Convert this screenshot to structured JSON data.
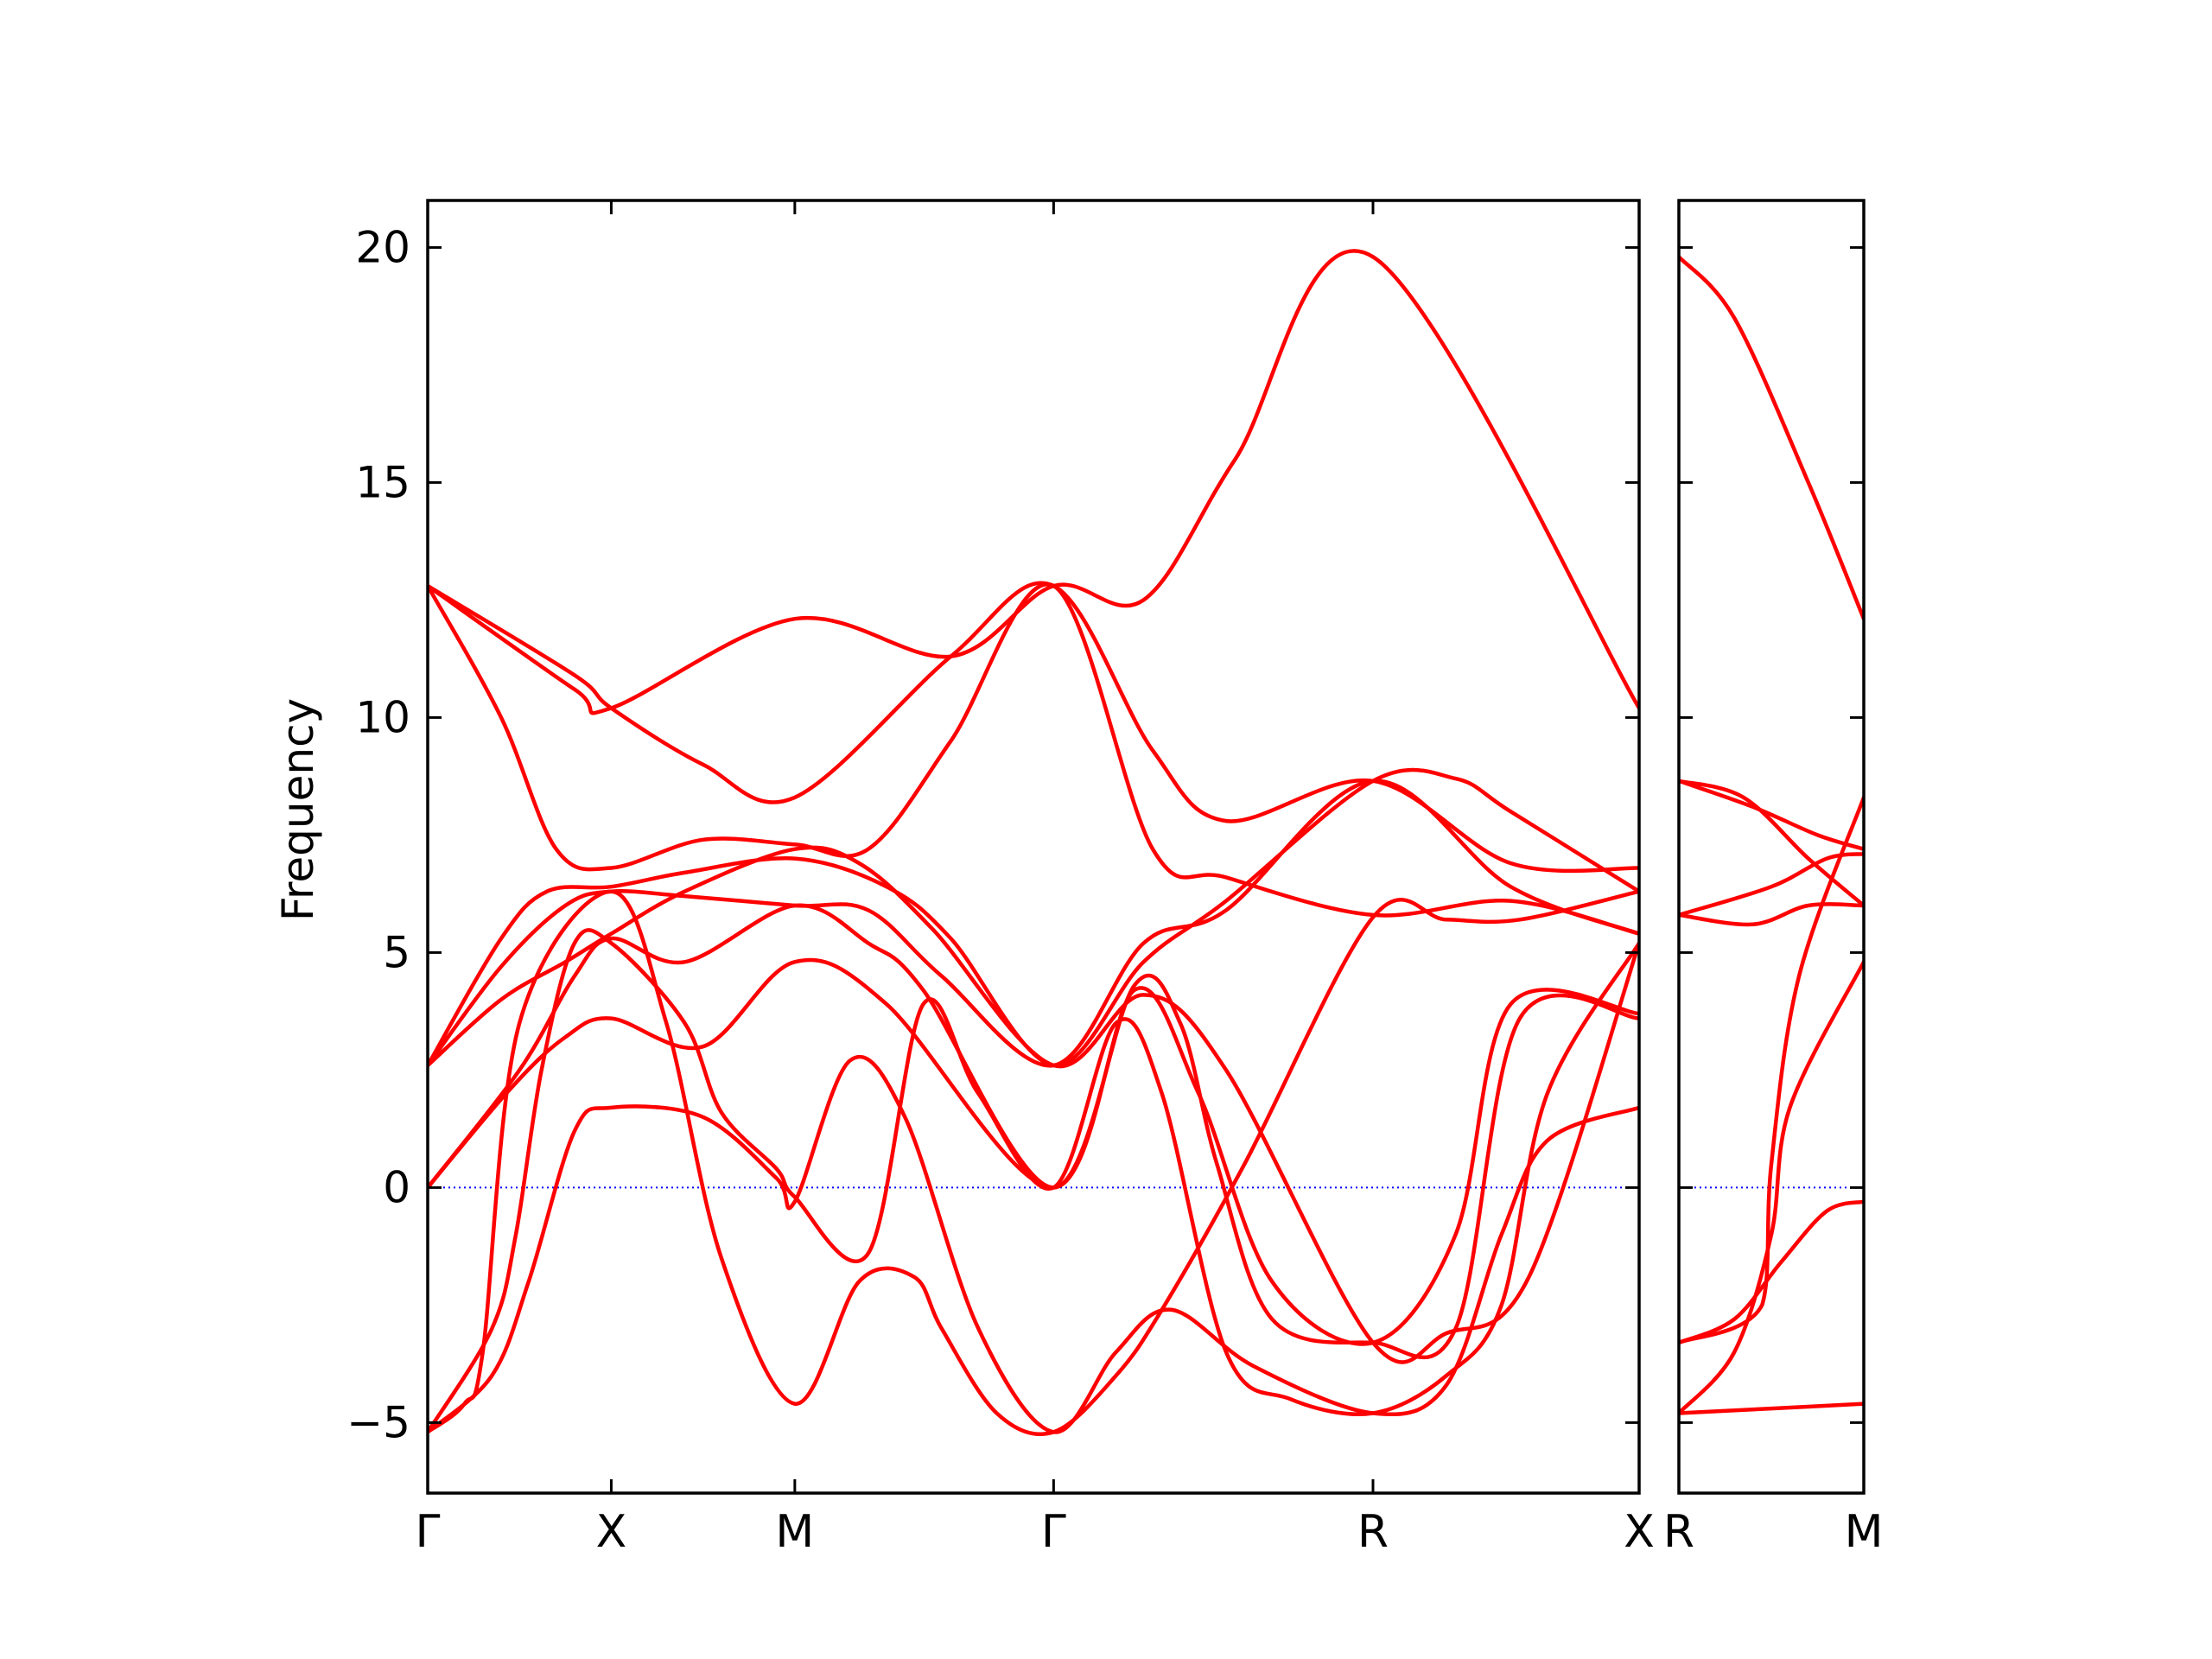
{
  "chart_data": {
    "type": "line",
    "ylabel": "Frequency",
    "ylim": [
      -6.5,
      21
    ],
    "yticks": [
      -5,
      0,
      5,
      10,
      15,
      20
    ],
    "ytick_labels": [
      "−5",
      "0",
      "5",
      "10",
      "15",
      "20"
    ],
    "grid": false,
    "zero_line": {
      "value": 0,
      "color": "#0000ff",
      "style": "dotted"
    },
    "line_color": "#ff0000",
    "panels": [
      {
        "x_range": [
          0,
          6.6
        ],
        "xticks": [
          {
            "x": 0,
            "label": "Γ"
          },
          {
            "x": 1.0,
            "label": "X"
          },
          {
            "x": 2.0,
            "label": "M"
          },
          {
            "x": 3.41,
            "label": "Γ"
          },
          {
            "x": 5.15,
            "label": "R"
          },
          {
            "x": 6.6,
            "label": "X"
          }
        ],
        "bands": [
          {
            "x": [
              0,
              0.8,
              1.0,
              2.0,
              2.85,
              3.41,
              3.9,
              4.4,
              5.15,
              6.6
            ],
            "y": [
              12.8,
              10.6,
              10.2,
              12.1,
              11.3,
              12.8,
              12.5,
              15.5,
              19.8,
              10.2
            ]
          },
          {
            "x": [
              0,
              0.8,
              1.0,
              1.5,
              2.0,
              2.85,
              3.41,
              3.95,
              4.35,
              5.15,
              5.9,
              6.6
            ],
            "y": [
              12.8,
              10.9,
              10.2,
              9.0,
              8.3,
              11.3,
              12.8,
              9.3,
              7.8,
              8.65,
              6.9,
              6.8
            ]
          },
          {
            "x": [
              0,
              0.4,
              0.7,
              1.0,
              1.5,
              2.0,
              2.4,
              2.85,
              3.41,
              3.95,
              4.35,
              5.15,
              5.9,
              6.6
            ],
            "y": [
              12.8,
              10.0,
              7.2,
              6.8,
              7.4,
              7.3,
              7.2,
              9.5,
              12.8,
              7.2,
              6.6,
              5.8,
              6.1,
              5.4
            ]
          },
          {
            "x": [
              0,
              0.4,
              0.65,
              1.0,
              1.4,
              2.0,
              2.5,
              2.85,
              3.41,
              3.9,
              4.35,
              5.15,
              5.6,
              5.9,
              6.6
            ],
            "y": [
              2.6,
              5.3,
              6.3,
              6.4,
              6.7,
              7.0,
              6.4,
              5.3,
              2.6,
              4.8,
              6.1,
              8.65,
              8.7,
              8.0,
              6.3
            ]
          },
          {
            "x": [
              0,
              0.4,
              0.75,
              1.0,
              1.4,
              2.0,
              2.4,
              2.8,
              3.41,
              3.9,
              4.35,
              5.15,
              5.9,
              6.6
            ],
            "y": [
              2.6,
              4.7,
              6.0,
              6.3,
              6.2,
              6.0,
              5.9,
              4.5,
              2.6,
              5.2,
              5.9,
              8.65,
              6.4,
              5.4
            ]
          },
          {
            "x": [
              0,
              0.4,
              0.75,
              1.0,
              1.4,
              2.0,
              2.35,
              2.75,
              3.41,
              3.9,
              4.35,
              5.15,
              5.55,
              6.0,
              6.6
            ],
            "y": [
              2.6,
              4.0,
              4.8,
              5.4,
              6.3,
              7.2,
              6.9,
              5.5,
              2.6,
              4.1,
              2.5,
              -3.3,
              -3.1,
              -1.9,
              5.2
            ]
          },
          {
            "x": [
              0,
              0.5,
              0.8,
              1.0,
              1.4,
              2.0,
              2.4,
              2.7,
              3.41,
              3.85,
              4.1,
              4.3,
              4.6,
              5.15,
              5.6,
              5.95,
              6.6
            ],
            "y": [
              0,
              2.5,
              4.5,
              5.3,
              4.8,
              6.0,
              5.2,
              4.2,
              0,
              4.3,
              3.5,
              0.5,
              -2.8,
              -3.3,
              -3.0,
              3.6,
              3.6
            ]
          },
          {
            "x": [
              0,
              0.45,
              0.75,
              1.0,
              1.5,
              2.0,
              2.5,
              3.41,
              3.85,
              4.2,
              4.6,
              5.15,
              5.6,
              5.9,
              6.6
            ],
            "y": [
              0,
              2.1,
              3.2,
              3.6,
              3.0,
              4.8,
              3.9,
              0,
              4.2,
              2.0,
              -2.0,
              -3.3,
              -1.0,
              3.9,
              3.7
            ]
          },
          {
            "x": [
              0,
              0.35,
              0.48,
              0.62,
              0.8,
              1.0,
              1.4,
              1.6,
              1.9,
              2.0,
              2.4,
              2.7,
              3.0,
              3.41,
              3.75,
              4.0,
              4.35,
              4.7,
              5.15,
              5.55,
              5.85,
              6.1,
              6.6
            ],
            "y": [
              -5.2,
              -3.0,
              -1.0,
              2.5,
              5.2,
              5.2,
              3.5,
              1.6,
              0.4,
              -0.2,
              -1.4,
              3.9,
              2.0,
              0,
              3.5,
              2.0,
              -3.5,
              -4.5,
              -4.8,
              -4.0,
              -2.5,
              2.0,
              5.2
            ]
          },
          {
            "x": [
              0,
              0.35,
              0.55,
              0.8,
              1.0,
              1.5,
              1.9,
              2.0,
              2.3,
              2.6,
              3.0,
              3.41,
              3.75,
              4.05,
              4.5,
              5.15,
              5.55,
              5.85,
              6.1,
              6.6
            ],
            "y": [
              -5.2,
              -4.0,
              -2.0,
              1.2,
              1.7,
              1.5,
              0.2,
              -0.3,
              2.7,
              1.5,
              -3.0,
              -5.2,
              -3.5,
              -2.6,
              -3.8,
              -4.8,
              -4.2,
              -1.0,
              1.0,
              1.7
            ]
          },
          {
            "x": [
              0,
              0.2,
              0.3,
              0.5,
              1.0,
              1.3,
              1.6,
              2.0,
              2.35,
              2.65,
              2.8,
              3.1,
              3.41,
              3.75,
              4.0,
              4.45,
              5.15,
              5.55,
              5.95,
              6.6
            ],
            "y": [
              -5.2,
              -4.6,
              -3.5,
              3.5,
              6.3,
              3.5,
              -1.5,
              -4.6,
              -2.0,
              -1.9,
              -3.0,
              -4.8,
              -5.2,
              -4.0,
              -2.6,
              0.5,
              5.75,
              5.7,
              5.7,
              6.3
            ]
          }
        ]
      },
      {
        "x_range": [
          0,
          1
        ],
        "xticks": [
          {
            "x": 0,
            "label": "R"
          },
          {
            "x": 1,
            "label": "M"
          }
        ],
        "bands": [
          {
            "x": [
              0,
              0.3,
              0.7,
              1.0
            ],
            "y": [
              19.8,
              18.5,
              15.0,
              12.1
            ]
          },
          {
            "x": [
              0,
              0.4,
              0.75,
              1.0
            ],
            "y": [
              8.65,
              8.1,
              7.5,
              7.2
            ]
          },
          {
            "x": [
              0,
              0.35,
              0.7,
              1.0
            ],
            "y": [
              8.65,
              8.3,
              7.0,
              6.0
            ]
          },
          {
            "x": [
              0,
              0.5,
              0.8,
              1.0
            ],
            "y": [
              5.8,
              6.4,
              7.0,
              7.1
            ]
          },
          {
            "x": [
              0,
              0.4,
              0.7,
              1.0
            ],
            "y": [
              5.8,
              5.6,
              6.0,
              6.0
            ]
          },
          {
            "x": [
              0,
              0.45,
              0.5,
              0.65,
              1.0
            ],
            "y": [
              -3.3,
              -2.5,
              0.5,
              4.5,
              8.3
            ]
          },
          {
            "x": [
              0,
              0.3,
              0.5,
              0.6,
              1.0
            ],
            "y": [
              -4.8,
              -3.5,
              -1.0,
              1.7,
              4.8
            ]
          },
          {
            "x": [
              0,
              0.3,
              0.55,
              0.8,
              1.0
            ],
            "y": [
              -3.3,
              -2.8,
              -1.6,
              -0.5,
              -0.3
            ]
          },
          {
            "x": [
              0,
              0.5,
              1.0
            ],
            "y": [
              -4.8,
              -4.7,
              -4.6
            ]
          }
        ]
      }
    ]
  }
}
